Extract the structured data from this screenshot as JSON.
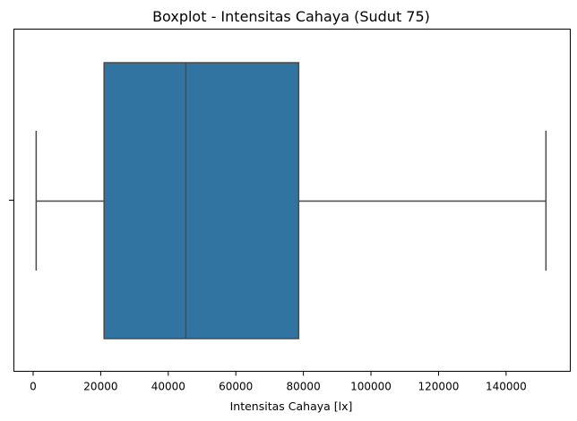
{
  "chart_data": {
    "type": "boxplot",
    "title": "Boxplot - Intensitas Cahaya (Sudut 75)",
    "xlabel": "Intensitas Cahaya [lx]",
    "ylabel": "",
    "orientation": "horizontal",
    "xlim": [
      -5700,
      159000
    ],
    "xticks": [
      0,
      20000,
      40000,
      60000,
      80000,
      100000,
      120000,
      140000
    ],
    "xtick_labels": [
      "0",
      "20000",
      "40000",
      "60000",
      "80000",
      "100000",
      "120000",
      "140000"
    ],
    "grid": false,
    "box": {
      "whisker_low": 900,
      "q1": 21000,
      "median": 45200,
      "q3": 78600,
      "whisker_high": 151800
    },
    "colors": {
      "box_fill": "#3274a1",
      "box_edge": "#4a4a4a",
      "axes": "#000000"
    }
  }
}
